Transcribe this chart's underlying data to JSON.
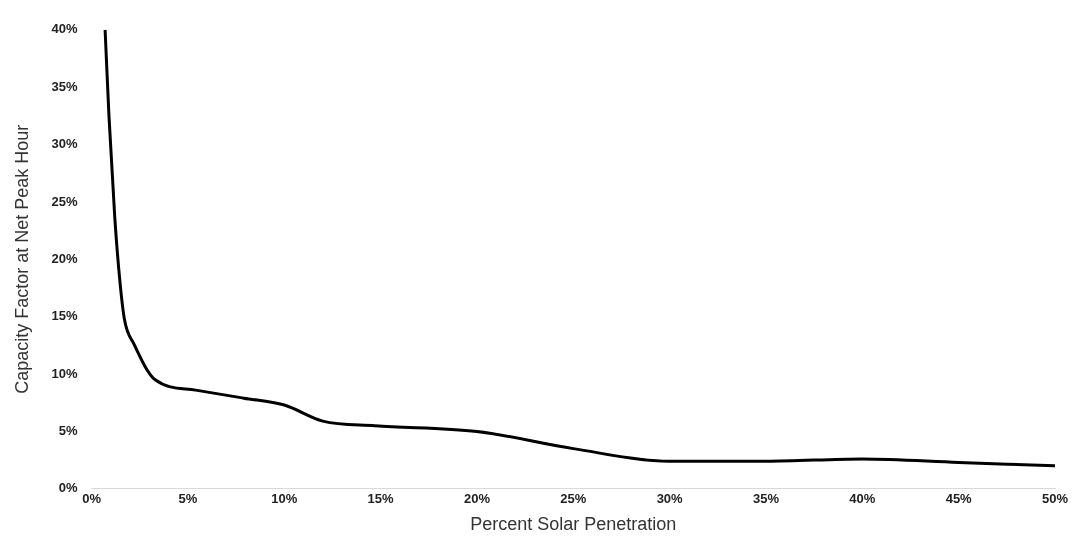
{
  "chart_data": {
    "type": "line",
    "xlabel": "Percent Solar Penetration",
    "ylabel": "Capacity Factor at Net Peak Hour",
    "x": [
      0.7,
      0.9,
      1.2,
      1.45,
      1.7,
      2.2,
      3.3,
      5.4,
      7.9,
      10,
      12,
      14.7,
      20,
      25,
      30,
      35,
      40,
      45,
      50
    ],
    "series": [
      {
        "color": "#000000",
        "values": [
          40,
          32.5,
          23.7,
          18.4,
          14.8,
          12.6,
          9.5,
          8.6,
          7.9,
          7.3,
          5.9,
          5.5,
          5.0,
          3.5,
          2.4,
          2.4,
          2.6,
          2.3,
          2.0
        ]
      }
    ],
    "xlim": [
      0,
      50
    ],
    "ylim": [
      0,
      40
    ],
    "xticks": [
      {
        "value": 0,
        "label": "0%"
      },
      {
        "value": 5,
        "label": "5%"
      },
      {
        "value": 10,
        "label": "10%"
      },
      {
        "value": 15,
        "label": "15%"
      },
      {
        "value": 20,
        "label": "20%"
      },
      {
        "value": 25,
        "label": "25%"
      },
      {
        "value": 30,
        "label": "30%"
      },
      {
        "value": 35,
        "label": "35%"
      },
      {
        "value": 40,
        "label": "40%"
      },
      {
        "value": 45,
        "label": "45%"
      },
      {
        "value": 50,
        "label": "50%"
      }
    ],
    "yticks": [
      {
        "value": 0,
        "label": "0%"
      },
      {
        "value": 5,
        "label": "5%"
      },
      {
        "value": 10,
        "label": "10%"
      },
      {
        "value": 15,
        "label": "15%"
      },
      {
        "value": 20,
        "label": "20%"
      },
      {
        "value": 25,
        "label": "25%"
      },
      {
        "value": 30,
        "label": "30%"
      },
      {
        "value": 35,
        "label": "35%"
      },
      {
        "value": 40,
        "label": "40%"
      }
    ],
    "grid": false,
    "legend": false,
    "marker": "none",
    "line_style": "solid"
  }
}
